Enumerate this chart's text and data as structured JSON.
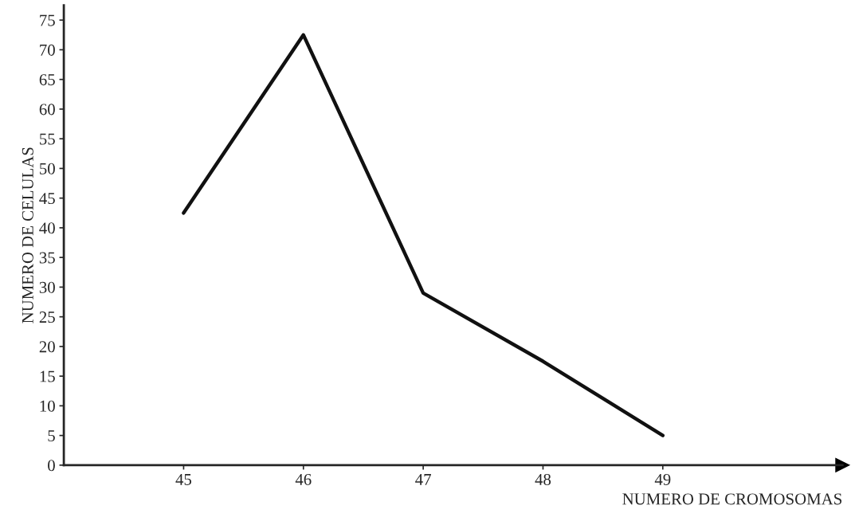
{
  "chart_data": {
    "type": "line",
    "xlabel": "NUMERO DE CROMOSOMAS",
    "ylabel": "NUMERO DE CELULAS",
    "x": [
      45,
      46,
      47,
      48,
      49
    ],
    "series": [
      {
        "color": "#111111",
        "values": [
          42.5,
          72.5,
          29,
          17.5,
          5
        ]
      }
    ],
    "xlim": [
      44,
      50.5
    ],
    "xticks": [
      45,
      46,
      47,
      48,
      49
    ],
    "ylim": [
      0,
      77.5
    ],
    "yticks": [
      0,
      5,
      10,
      15,
      20,
      25,
      30,
      35,
      40,
      45,
      50,
      55,
      60,
      65,
      70,
      75
    ],
    "grid": false,
    "legend": false,
    "marker": "none",
    "line_style": "solid"
  }
}
